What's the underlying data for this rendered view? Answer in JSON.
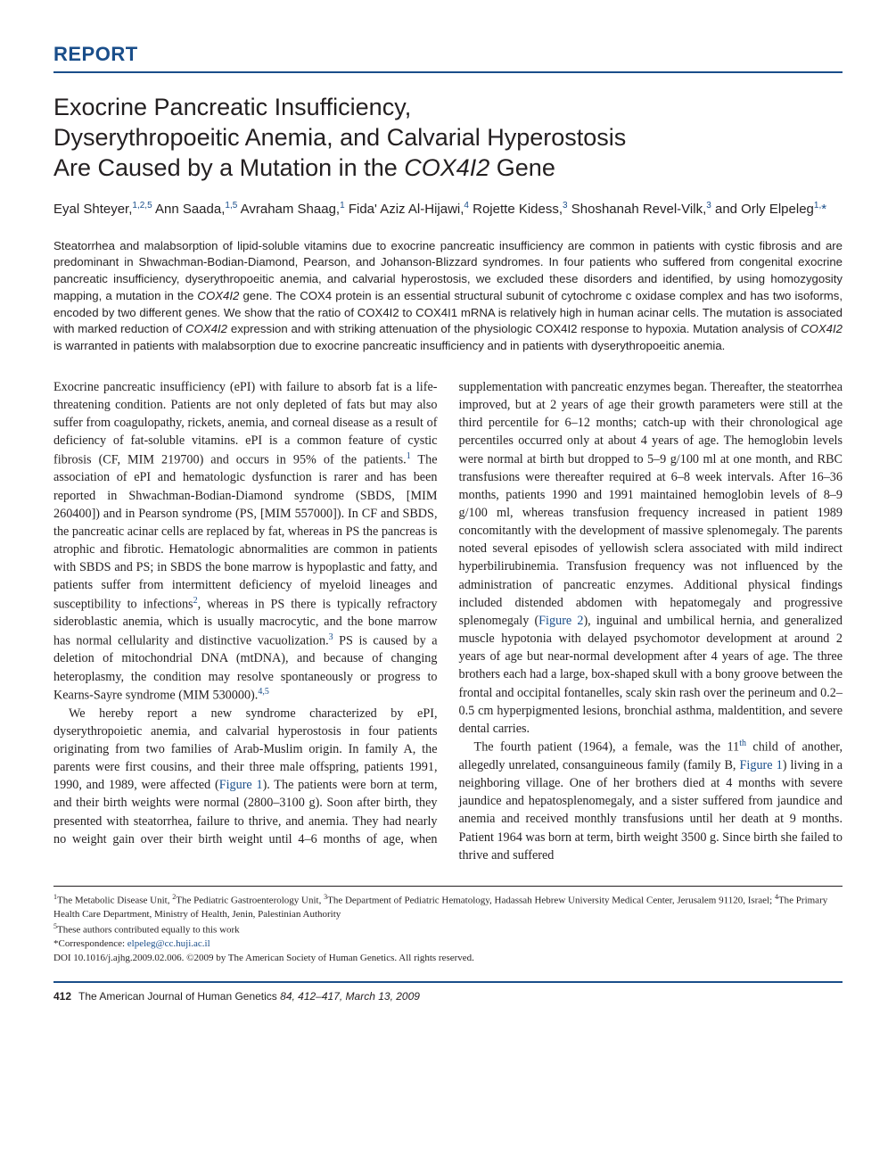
{
  "label": "REPORT",
  "title_lines": [
    "Exocrine Pancreatic Insufficiency,",
    "Dyserythropoeitic Anemia, and Calvarial Hyperostosis",
    "Are Caused by a Mutation in the "
  ],
  "title_gene": "COX4I2",
  "title_tail": " Gene",
  "authors_html": "Eyal Shteyer,<sup>1,2,5</sup> Ann Saada,<sup>1,5</sup> Avraham Shaag,<sup>1</sup> Fida' Aziz Al-Hijawi,<sup>4</sup> Rojette Kidess,<sup>3</sup> Shoshanah Revel-Vilk,<sup>3</sup> and Orly Elpeleg<sup>1,</sup><span class=\"star\">*</span>",
  "abstract": "Steatorrhea and malabsorption of lipid-soluble vitamins due to exocrine pancreatic insufficiency are common in patients with cystic fibrosis and are predominant in Shwachman-Bodian-Diamond, Pearson, and Johanson-Blizzard syndromes. In four patients who suffered from congenital exocrine pancreatic insufficiency, dyserythropoeitic anemia, and calvarial hyperostosis, we excluded these disorders and identified, by using homozygosity mapping, a mutation in the <span class=\"gene\">COX4I2</span> gene. The COX4 protein is an essential structural subunit of cytochrome c oxidase complex and has two isoforms, encoded by two different genes. We show that the ratio of COX4I2 to COX4I1 mRNA is relatively high in human acinar cells. The mutation is associated with marked reduction of <span class=\"gene\">COX4I2</span> expression and with striking attenuation of the physiologic COX4I2 response to hypoxia. Mutation analysis of <span class=\"gene\">COX4I2</span> is warranted in patients with malabsorption due to exocrine pancreatic insufficiency and in patients with dyserythropoeitic anemia.",
  "body_paragraphs": [
    "Exocrine pancreatic insufficiency (ePI) with failure to absorb fat is a life-threatening condition. Patients are not only depleted of fats but may also suffer from coagulopathy, rickets, anemia, and corneal disease as a result of deficiency of fat-soluble vitamins. ePI is a common feature of cystic fibrosis (CF, MIM 219700) and occurs in 95% of the patients.<sup>1</sup> The association of ePI and hematologic dysfunction is rarer and has been reported in Shwachman-Bodian-Diamond syndrome (SBDS, [MIM 260400]) and in Pearson syndrome (PS, [MIM 557000]). In CF and SBDS, the pancreatic acinar cells are replaced by fat, whereas in PS the pancreas is atrophic and fibrotic. Hematologic abnormalities are common in patients with SBDS and PS; in SBDS the bone marrow is hypoplastic and fatty, and patients suffer from intermittent deficiency of myeloid lineages and susceptibility to infections<sup>2</sup>, whereas in PS there is typically refractory sideroblastic anemia, which is usually macrocytic, and the bone marrow has normal cellularity and distinctive vacuolization.<sup>3</sup> PS is caused by a deletion of mitochondrial DNA (mtDNA), and because of changing heteroplasmy, the condition may resolve spontaneously or progress to Kearns-Sayre syndrome (MIM 530000).<sup>4,5</sup>",
    "We hereby report a new syndrome characterized by ePI, dyserythropoietic anemia, and calvarial hyperostosis in four patients originating from two families of Arab-Muslim origin. In family A, the parents were first cousins, and their three male offspring, patients 1991, 1990, and 1989, were affected (<span class=\"figref\">Figure 1</span>). The patients were born at term, and their birth weights were normal (2800–3100 g). Soon after birth, they presented with steatorrhea, failure to thrive, and anemia. They had nearly no weight gain over their birth weight until 4–6 months of age, when supplementation with pancreatic enzymes began. Thereafter, the steatorrhea improved, but at 2 years of age their growth parameters were still at the third percentile for 6–12 months; catch-up with their chronological age percentiles occurred only at about 4 years of age. The hemoglobin levels were normal at birth but dropped to 5–9 g/100 ml at one month, and RBC transfusions were thereafter required at 6–8 week intervals. After 16–36 months, patients 1990 and 1991 maintained hemoglobin levels of 8–9 g/100 ml, whereas transfusion frequency increased in patient 1989 concomitantly with the development of massive splenomegaly. The parents noted several episodes of yellowish sclera associated with mild indirect hyperbilirubinemia. Transfusion frequency was not influenced by the administration of pancreatic enzymes. Additional physical findings included distended abdomen with hepatomegaly and progressive splenomegaly (<span class=\"figref\">Figure 2</span>), inguinal and umbilical hernia, and generalized muscle hypotonia with delayed psychomotor development at around 2 years of age but near-normal development after 4 years of age. The three brothers each had a large, box-shaped skull with a bony groove between the frontal and occipital fontanelles, scaly skin rash over the perineum and 0.2–0.5 cm hyperpigmented lesions, bronchial asthma, maldentition, and severe dental carries.",
    "The fourth patient (1964), a female, was the 11<sup>th</sup> child of another, allegedly unrelated, consanguineous family (family B, <span class=\"figref\">Figure 1</span>) living in a neighboring village. One of her brothers died at 4 months with severe jaundice and hepatosplenomegaly, and a sister suffered from jaundice and anemia and received monthly transfusions until her death at 9 months. Patient 1964 was born at term, birth weight 3500 g. Since birth she failed to thrive and suffered"
  ],
  "affiliations": "<sup>1</sup>The Metabolic Disease Unit, <sup>2</sup>The Pediatric Gastroenterology Unit, <sup>3</sup>The Department of Pediatric Hematology, Hadassah Hebrew University Medical Center, Jerusalem 91120, Israel; <sup>4</sup>The Primary Health Care Department, Ministry of Health, Jenin, Palestinian Authority",
  "equal_contrib": "<sup>5</sup>These authors contributed equally to this work",
  "correspondence_label": "*Correspondence: ",
  "correspondence_email": "elpeleg@cc.huji.ac.il",
  "doi_line": "DOI 10.1016/j.ajhg.2009.02.006. ©2009 by The American Society of Human Genetics. All rights reserved.",
  "footer": {
    "page": "412",
    "journal": "The American Journal of Human Genetics",
    "rest": " 84, 412–417, March 13, 2009"
  },
  "colors": {
    "brand_blue": "#1a4e8a",
    "text": "#231f20",
    "link": "#1a4e8a"
  },
  "fonts": {
    "serif": "ITC Stone Serif / Georgia",
    "sans": "ITC Stone Sans / Helvetica"
  }
}
